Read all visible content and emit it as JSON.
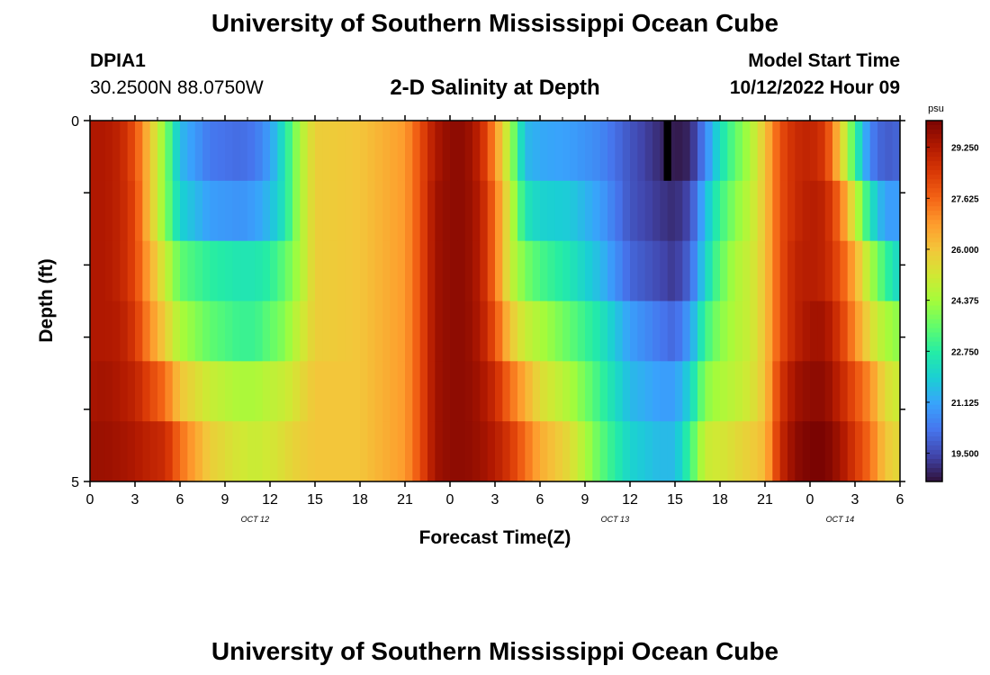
{
  "header": {
    "title": "University of Southern Mississippi Ocean Cube",
    "station_id": "DPIA1",
    "station_coords": "30.2500N  88.0750W",
    "subtitle": "2-D Salinity at Depth",
    "model_start_label": "Model Start Time",
    "model_start_value": "10/12/2022 Hour 09"
  },
  "footer": {
    "title": "University of Southern Mississippi Ocean Cube"
  },
  "colorbar": {
    "unit": "psu",
    "ticks": [
      "29.250",
      "27.625",
      "26.000",
      "24.375",
      "22.750",
      "21.125",
      "19.500"
    ]
  },
  "chart_data": {
    "type": "heatmap",
    "title": "2-D Salinity at Depth",
    "xlabel": "Forecast Time(Z)",
    "ylabel": "Depth (ft)",
    "x_tick_labels": [
      "0",
      "3",
      "6",
      "9",
      "12",
      "15",
      "18",
      "21",
      "0",
      "3",
      "6",
      "9",
      "12",
      "15",
      "18",
      "21",
      "0",
      "3",
      "6"
    ],
    "x_hours": [
      0,
      3,
      6,
      9,
      12,
      15,
      18,
      21,
      24,
      27,
      30,
      33,
      36,
      39,
      42,
      45,
      48,
      51,
      54
    ],
    "date_labels": [
      {
        "label": "OCT 12",
        "hour": 11
      },
      {
        "label": "OCT 13",
        "hour": 35
      },
      {
        "label": "OCT 14",
        "hour": 50
      }
    ],
    "ylim": [
      0,
      5
    ],
    "y_tick_labels": [
      "0",
      "5"
    ],
    "depth_levels": [
      0,
      1,
      2,
      3,
      4,
      5
    ],
    "colorbar_range": [
      18.6,
      30.1
    ],
    "colormap": [
      "#30123b",
      "#4145ab",
      "#4675ed",
      "#39a2fc",
      "#1bcfd4",
      "#24eca6",
      "#61fc6c",
      "#a4fc3b",
      "#d1e834",
      "#f3c63a",
      "#fe9b2d",
      "#f36315",
      "#d93806",
      "#b11901",
      "#7a0402"
    ],
    "missing_cells": [
      {
        "hour": 38.5,
        "depth_level": 0
      }
    ],
    "time_keyframes": [
      0,
      1,
      2,
      3,
      4,
      5,
      6,
      8,
      10,
      11,
      12,
      13,
      14,
      15,
      18,
      21,
      22,
      23,
      24,
      25,
      26,
      27,
      28,
      29,
      30,
      32,
      34,
      36,
      38,
      39,
      40,
      41,
      42,
      43,
      44,
      45,
      46,
      47,
      48,
      49,
      50,
      51,
      52,
      53,
      54
    ],
    "salinity_by_depth": [
      [
        29.3,
        29.3,
        29.0,
        28.0,
        26.0,
        24.0,
        21.5,
        20.3,
        20.1,
        20.3,
        21.0,
        22.5,
        24.5,
        25.8,
        26.0,
        26.8,
        28.0,
        29.3,
        29.8,
        29.8,
        29.0,
        27.0,
        24.5,
        21.5,
        21.2,
        21.0,
        20.6,
        19.7,
        19.0,
        18.7,
        18.9,
        20.5,
        22.3,
        23.5,
        24.5,
        26.0,
        28.0,
        28.8,
        29.0,
        28.5,
        26.0,
        23.0,
        20.5,
        19.8,
        20.0
      ],
      [
        29.3,
        29.3,
        29.0,
        28.2,
        26.0,
        24.0,
        22.0,
        21.0,
        20.8,
        21.0,
        21.5,
        22.5,
        24.5,
        25.8,
        26.0,
        26.8,
        28.0,
        29.5,
        29.8,
        29.8,
        29.2,
        27.5,
        25.0,
        22.5,
        22.0,
        21.8,
        21.0,
        19.7,
        19.2,
        19.0,
        19.5,
        21.5,
        23.0,
        24.0,
        24.8,
        26.0,
        28.0,
        28.8,
        29.2,
        29.0,
        27.5,
        25.0,
        22.5,
        21.0,
        21.0
      ],
      [
        29.3,
        29.3,
        29.0,
        28.2,
        26.5,
        25.0,
        23.5,
        22.8,
        22.5,
        22.5,
        22.8,
        23.5,
        24.5,
        25.8,
        26.0,
        26.8,
        28.0,
        29.5,
        29.8,
        29.8,
        29.2,
        27.5,
        25.0,
        23.8,
        23.2,
        22.5,
        21.5,
        20.0,
        19.5,
        19.2,
        20.0,
        22.0,
        23.5,
        24.5,
        25.0,
        26.0,
        28.0,
        29.0,
        29.2,
        29.0,
        28.0,
        26.5,
        24.5,
        23.0,
        22.0
      ],
      [
        29.3,
        29.3,
        29.2,
        28.5,
        27.0,
        25.8,
        24.5,
        23.5,
        23.0,
        23.0,
        23.5,
        24.0,
        25.0,
        25.8,
        26.0,
        26.8,
        28.0,
        29.5,
        29.8,
        29.8,
        29.3,
        28.0,
        26.0,
        25.0,
        24.5,
        23.5,
        22.5,
        21.0,
        20.3,
        20.0,
        21.0,
        23.0,
        24.0,
        24.6,
        25.0,
        26.0,
        28.0,
        29.0,
        29.5,
        29.5,
        28.5,
        27.0,
        25.5,
        24.5,
        24.0
      ],
      [
        29.4,
        29.5,
        29.3,
        29.0,
        28.2,
        27.5,
        26.0,
        25.0,
        24.5,
        24.5,
        24.8,
        25.0,
        25.5,
        26.0,
        26.0,
        26.8,
        28.0,
        29.5,
        29.8,
        29.8,
        29.5,
        28.8,
        27.5,
        26.5,
        25.5,
        24.5,
        23.0,
        21.5,
        21.0,
        21.0,
        22.0,
        24.0,
        24.5,
        24.8,
        25.2,
        26.0,
        28.5,
        29.5,
        29.8,
        29.8,
        29.0,
        28.0,
        27.0,
        25.5,
        25.0
      ],
      [
        29.6,
        29.6,
        29.5,
        29.3,
        29.0,
        28.8,
        27.5,
        25.8,
        25.2,
        25.0,
        25.2,
        25.5,
        25.8,
        26.0,
        26.0,
        26.8,
        28.0,
        29.5,
        29.8,
        29.8,
        29.6,
        29.2,
        28.5,
        27.5,
        26.5,
        25.5,
        23.5,
        22.0,
        21.5,
        21.5,
        23.0,
        25.0,
        25.2,
        25.5,
        25.8,
        26.2,
        28.8,
        29.8,
        30.1,
        30.1,
        29.5,
        28.5,
        27.5,
        26.0,
        25.5
      ]
    ]
  }
}
